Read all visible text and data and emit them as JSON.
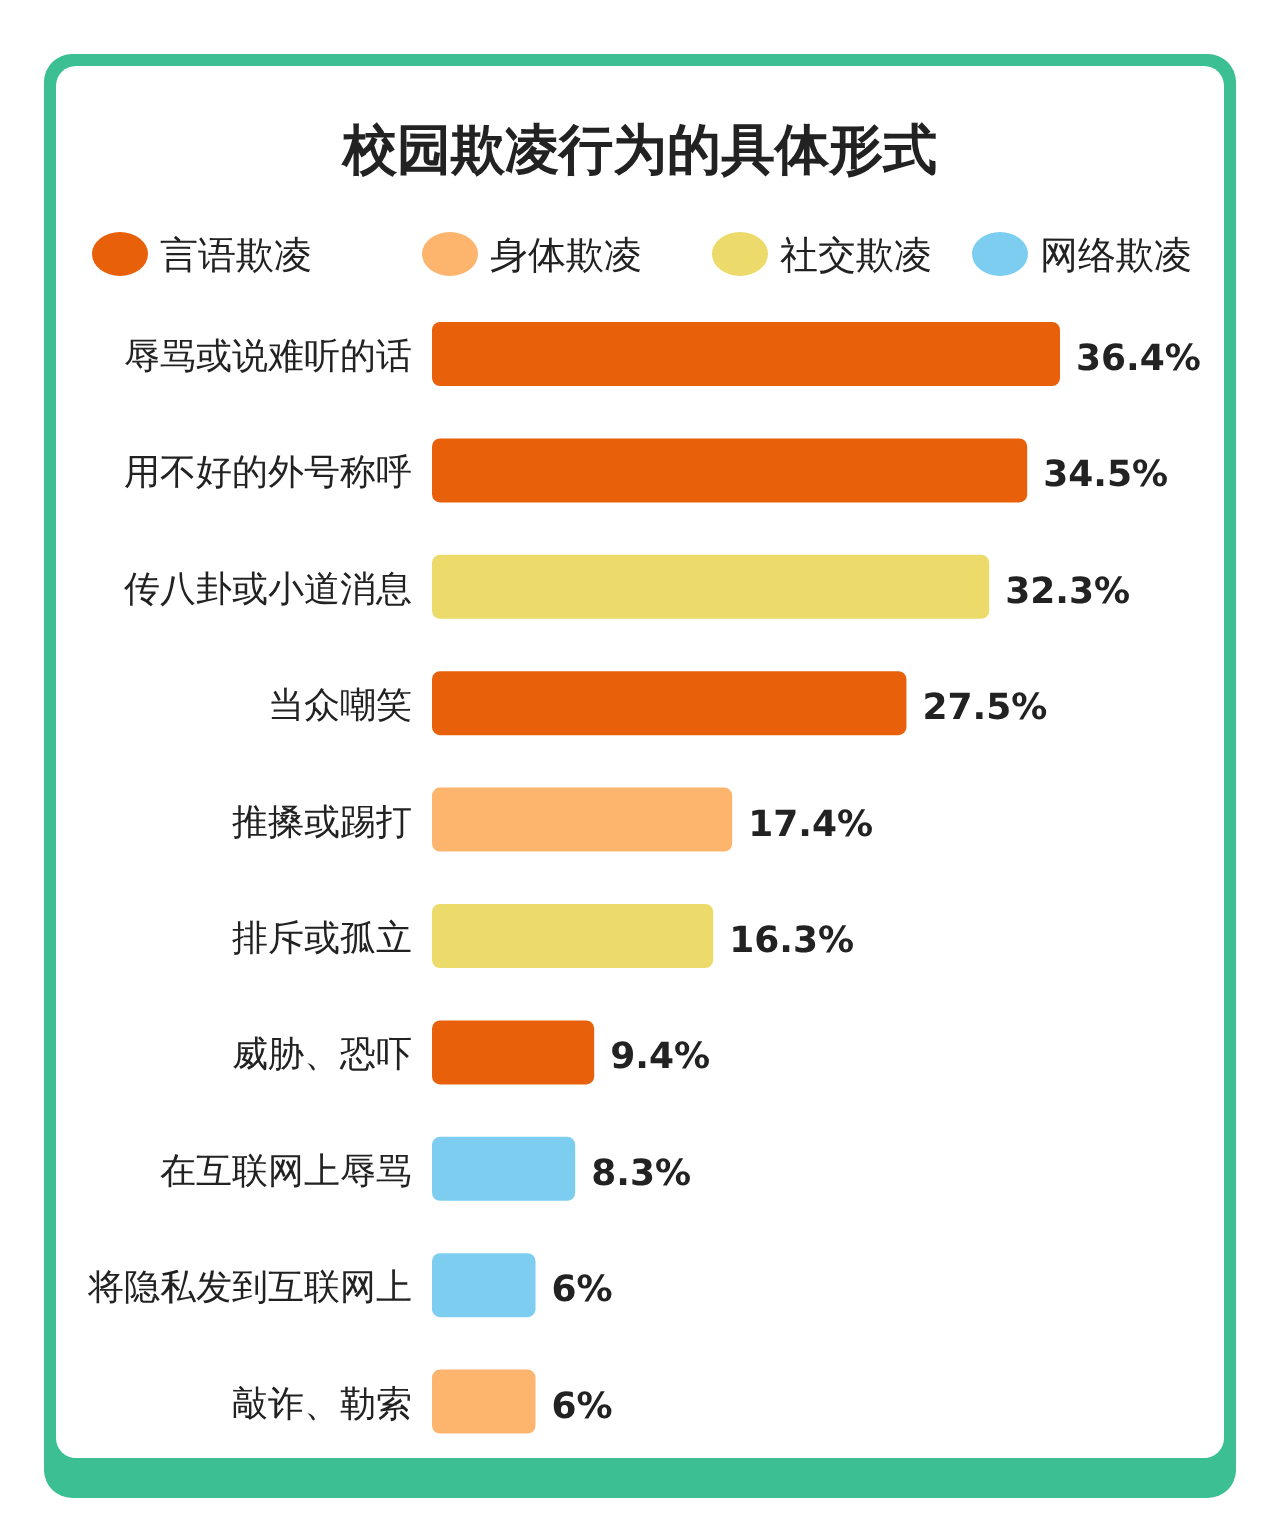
{
  "chart_data": {
    "type": "bar",
    "orientation": "horizontal",
    "title": "校园欺凌行为的具体形式",
    "legend": "top",
    "categories": [
      "辱骂或说难听的话",
      "用不好的外号称呼",
      "传八卦或小道消息",
      "当众嘲笑",
      "推搡或踢打",
      "排斥或孤立",
      "威胁、恐吓",
      "在互联网上辱骂",
      "将隐私发到互联网上",
      "敲诈、勒索"
    ],
    "series": [
      {
        "name": "言语欺凌",
        "color": "#e8600a",
        "values": [
          36.4,
          34.5,
          null,
          27.5,
          null,
          null,
          9.4,
          null,
          null,
          null
        ],
        "value_labels": [
          "36.4%",
          "34.5%",
          null,
          "27.5%",
          null,
          null,
          "9.4%",
          null,
          null,
          null
        ]
      },
      {
        "name": "身体欺凌",
        "color": "#fdb56e",
        "values": [
          null,
          null,
          null,
          null,
          17.4,
          null,
          null,
          null,
          null,
          6
        ],
        "value_labels": [
          null,
          null,
          null,
          null,
          "17.4%",
          null,
          null,
          null,
          null,
          "6%"
        ]
      },
      {
        "name": "社交欺凌",
        "color": "#ecdb6a",
        "values": [
          null,
          null,
          32.3,
          null,
          null,
          16.3,
          null,
          null,
          null,
          null
        ],
        "value_labels": [
          null,
          null,
          "32.3%",
          null,
          null,
          "16.3%",
          null,
          null,
          null,
          null
        ]
      },
      {
        "name": "网络欺凌",
        "color": "#7ccdf0",
        "values": [
          null,
          null,
          null,
          null,
          null,
          null,
          null,
          8.3,
          6,
          null
        ],
        "value_labels": [
          null,
          null,
          null,
          null,
          null,
          null,
          null,
          "8.3%",
          "6%",
          null
        ]
      }
    ]
  }
}
